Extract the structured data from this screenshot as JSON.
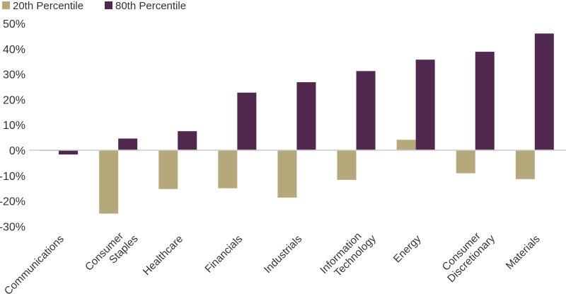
{
  "chart_data": {
    "type": "bar",
    "title": "",
    "xlabel": "",
    "ylabel": "",
    "ylim": [
      -30,
      50
    ],
    "yticks": [
      50,
      40,
      30,
      20,
      10,
      0,
      -10,
      -20,
      -30
    ],
    "ytick_labels": [
      "50%",
      "40%",
      "30%",
      "20%",
      "10%",
      "0%",
      "-10%",
      "-20%",
      "-30%"
    ],
    "grid": false,
    "legend_position": "top-left",
    "categories": [
      [
        "Communications"
      ],
      [
        "Consumer",
        "Staples"
      ],
      [
        "Healthcare"
      ],
      [
        "Financials"
      ],
      [
        "Industrials"
      ],
      [
        "Information",
        "Technology"
      ],
      [
        "Energy"
      ],
      [
        "Consumer",
        "Discretionary"
      ],
      [
        "Materials"
      ]
    ],
    "series": [
      {
        "name": "20th Percentile",
        "color": "#b5a97b",
        "values": [
          -0.3,
          -25.0,
          -15.3,
          -15.0,
          -18.7,
          -11.7,
          4.1,
          -9.1,
          -11.4
        ]
      },
      {
        "name": "80th Percentile",
        "color": "#52294e",
        "values": [
          -1.7,
          4.6,
          7.5,
          22.7,
          26.8,
          31.2,
          35.7,
          38.8,
          46.0
        ]
      }
    ]
  }
}
